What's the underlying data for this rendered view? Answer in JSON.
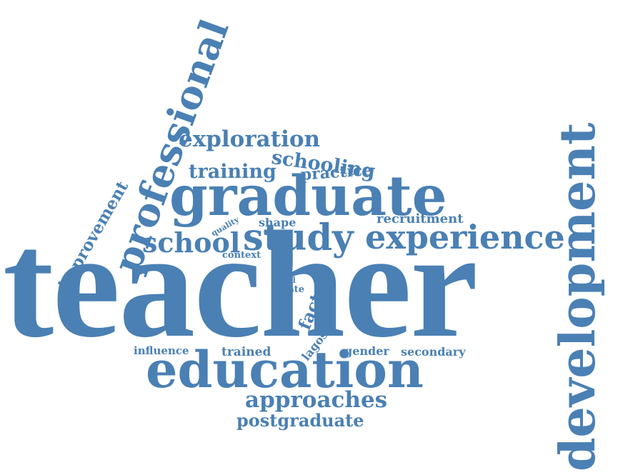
{
  "palette": {
    "word_color": "#4a80b4",
    "background": "#ffffff"
  },
  "words": {
    "teacher": "teacher",
    "development": "development",
    "professional": "professional",
    "graduate": "graduate",
    "education": "education",
    "experience": "experience",
    "study": "study",
    "school": "school",
    "exploration": "exploration",
    "schooling": "schooling",
    "training": "training",
    "practice": "practice",
    "improvement": "improvement",
    "approaches": "approaches",
    "postgraduate": "postgraduate",
    "recruitment": "recruitment",
    "factor": "factor",
    "lagos": "lagos",
    "shape": "shape",
    "quality": "quality",
    "context": "context",
    "girl": "girl",
    "state": "state",
    "influence": "influence",
    "trained": "trained",
    "gender": "gender",
    "secondary": "secondary"
  }
}
